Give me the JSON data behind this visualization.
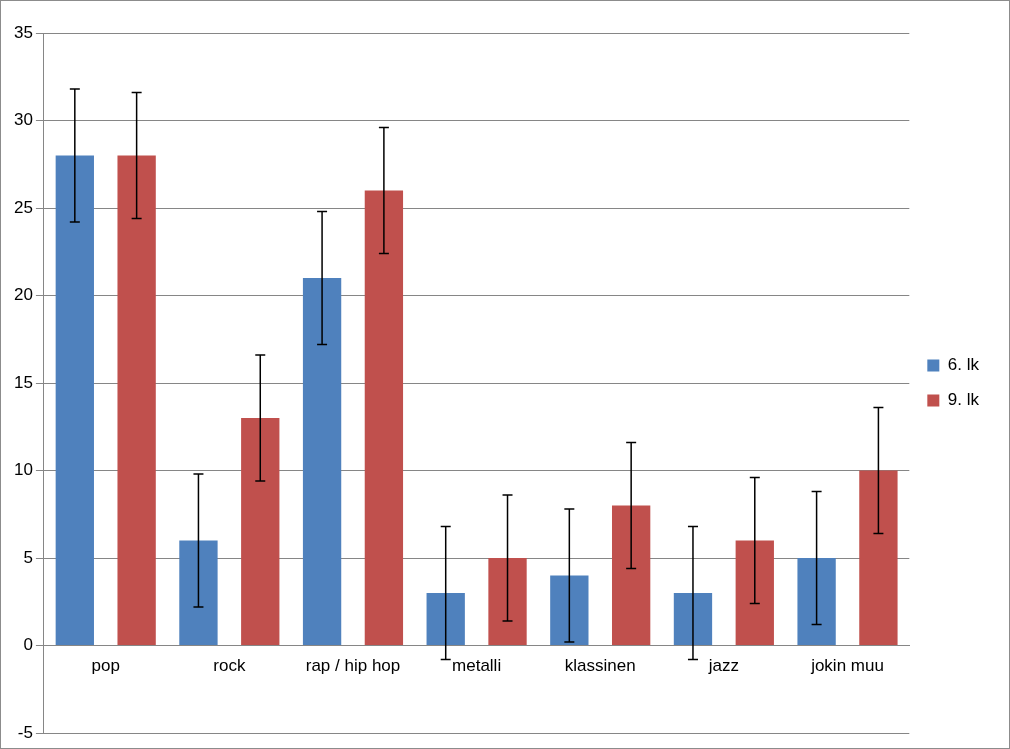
{
  "chart_data": {
    "type": "bar",
    "categories": [
      "pop",
      "rock",
      "rap / hip hop",
      "metalli",
      "klassinen",
      "jazz",
      "jokin muu"
    ],
    "series": [
      {
        "name": "6. lk",
        "color": "#4f81bd",
        "values": [
          28,
          6,
          21,
          3,
          4,
          3,
          5
        ],
        "errors": [
          3.8,
          3.8,
          3.8,
          3.8,
          3.8,
          3.8,
          3.8
        ]
      },
      {
        "name": "9. lk",
        "color": "#c0504d",
        "values": [
          28,
          13,
          26,
          5,
          8,
          6,
          10
        ],
        "errors": [
          3.6,
          3.6,
          3.6,
          3.6,
          3.6,
          3.6,
          3.6
        ]
      }
    ],
    "ylim": [
      -5,
      35
    ],
    "yticks": [
      -5,
      0,
      5,
      10,
      15,
      20,
      25,
      30,
      35
    ],
    "grid": "y",
    "legend": "right"
  }
}
